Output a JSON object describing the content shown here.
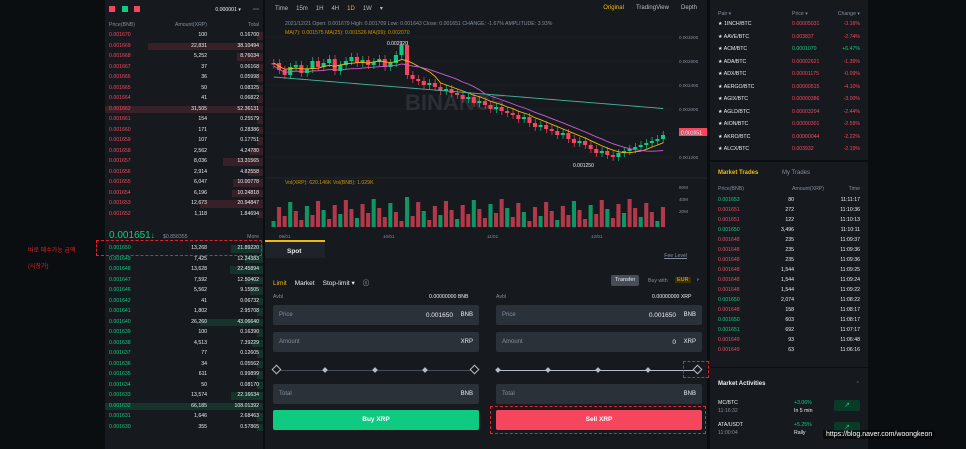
{
  "annotation": {
    "line1": "바로 매수가능 금액",
    "line2": "(시장가)"
  },
  "watermark": "https://blog.naver.com/woongkeon",
  "orderbook": {
    "precision": "0.000001 ▾",
    "headers": [
      "Price(BNB)",
      "Amount(XRP)",
      "Total"
    ],
    "asks": [
      [
        "0.001670",
        "100",
        "0.16700"
      ],
      [
        "0.001669",
        "22,831",
        "38.10494"
      ],
      [
        "0.001668",
        "5,252",
        "8.76034"
      ],
      [
        "0.001667",
        "37",
        "0.06168"
      ],
      [
        "0.001666",
        "36",
        "0.05998"
      ],
      [
        "0.001665",
        "50",
        "0.08325"
      ],
      [
        "0.001664",
        "41",
        "0.06822"
      ],
      [
        "0.001662",
        "31,505",
        "52.36131"
      ],
      [
        "0.001661",
        "154",
        "0.25579"
      ],
      [
        "0.001660",
        "171",
        "0.28386"
      ],
      [
        "0.001659",
        "107",
        "0.17751"
      ],
      [
        "0.001658",
        "2,562",
        "4.24780"
      ],
      [
        "0.001657",
        "8,036",
        "13.31565"
      ],
      [
        "0.001656",
        "2,914",
        "4.82558"
      ],
      [
        "0.001655",
        "6,047",
        "10.00778"
      ],
      [
        "0.001654",
        "6,196",
        "10.24818"
      ],
      [
        "0.001653",
        "12,673",
        "20.94847"
      ],
      [
        "0.001652",
        "1,118",
        "1.84694"
      ]
    ],
    "last_price": "0.001651",
    "last_arrow": "↓",
    "last_usd": "$0.858355",
    "more": "More",
    "bids": [
      [
        "0.001650",
        "13,268",
        "21.89220"
      ],
      [
        "0.001649",
        "7,425",
        "12.24383"
      ],
      [
        "0.001648",
        "13,628",
        "22.45894"
      ],
      [
        "0.001647",
        "7,592",
        "12.50402"
      ],
      [
        "0.001646",
        "5,562",
        "9.15505"
      ],
      [
        "0.001642",
        "41",
        "0.06732"
      ],
      [
        "0.001641",
        "1,802",
        "2.95708"
      ],
      [
        "0.001640",
        "26,260",
        "43.06640"
      ],
      [
        "0.001639",
        "100",
        "0.16390"
      ],
      [
        "0.001638",
        "4,513",
        "7.39229"
      ],
      [
        "0.001637",
        "77",
        "0.12605"
      ],
      [
        "0.001636",
        "34",
        "0.05562"
      ],
      [
        "0.001635",
        "611",
        "0.99899"
      ],
      [
        "0.001634",
        "50",
        "0.08170"
      ],
      [
        "0.001633",
        "13,574",
        "22.16634"
      ],
      [
        "0.001632",
        "66,185",
        "108.01392"
      ],
      [
        "0.001631",
        "1,646",
        "2.68463"
      ],
      [
        "0.001630",
        "355",
        "0.57865"
      ]
    ]
  },
  "chart": {
    "intervals": [
      "Time",
      "15m",
      "1H",
      "4H",
      "1D",
      "1W",
      "▾"
    ],
    "active_interval": "1D",
    "views": [
      "Original",
      "TradingView",
      "Depth"
    ],
    "ohlc": "2021/12/21  Open: 0.001679  High: 0.001709  Low: 0.001643  Close: 0.001651  CHANGE: -1.67%  AMPLITUDE: 3.93%",
    "ma": "MA(7): 0.001575  MA(25): 0.001526  MA(99): 0.002070",
    "vol": "Vol(XRP): 620.146K  Vol(BNB): 1.029K",
    "high_label": "0.002920",
    "low_label": "0.001250",
    "price_tag": "0.001651",
    "y_ticks": [
      "0.003200",
      "0.002800",
      "0.002400",
      "0.002000",
      "0.001600",
      "0.001200"
    ],
    "vol_ticks": [
      "60M",
      "40M",
      "20M"
    ],
    "x_ticks": [
      "09/01",
      "10/01",
      "11/01",
      "12/01"
    ],
    "watermark": "BINANCE"
  },
  "trade": {
    "tab": "Spot",
    "fee": "Fee Level",
    "order_types": [
      "Limit",
      "Market",
      "Stop-limit ▾",
      "ⓘ"
    ],
    "transfer": "Transfer",
    "buy_with": "Buy with",
    "eur": "EUR",
    "buy": {
      "avbl_label": "Avbl",
      "avbl_value": "0.00000000 BNB",
      "price_label": "Price",
      "price_value": "0.001650",
      "price_unit": "BNB",
      "amount_label": "Amount",
      "amount_value": "",
      "amount_unit": "XRP",
      "total_label": "Total",
      "total_unit": "BNB",
      "button": "Buy XRP"
    },
    "sell": {
      "avbl_label": "Avbl",
      "avbl_value": "0.00000000 XRP",
      "price_label": "Price",
      "price_value": "0.001650",
      "price_unit": "BNB",
      "amount_label": "Amount",
      "amount_value": "0",
      "amount_unit": "XRP",
      "total_label": "Total",
      "total_unit": "BNB",
      "button": "Sell XRP"
    }
  },
  "pairs": {
    "headers": [
      "Pair ▾",
      "Price ▾",
      "Change ▾"
    ],
    "rows": [
      [
        "1INCH/BTC",
        "0.00005031",
        "-3.16%",
        "red"
      ],
      [
        "AAVE/BTC",
        "0.003837",
        "-2.74%",
        "red"
      ],
      [
        "ACM/BTC",
        "0.0001070",
        "+6.47%",
        "green"
      ],
      [
        "ADA/BTC",
        "0.00002621",
        "-1.39%",
        "red"
      ],
      [
        "ADX/BTC",
        "0.00001175",
        "-0.09%",
        "red"
      ],
      [
        "AERGO/BTC",
        "0.00000515",
        "-4.10%",
        "red"
      ],
      [
        "AGIX/BTC",
        "0.00000386",
        "-3.00%",
        "red"
      ],
      [
        "AGLD/BTC",
        "0.00003204",
        "-2.44%",
        "red"
      ],
      [
        "AION/BTC",
        "0.00000301",
        "-2.59%",
        "red"
      ],
      [
        "AKRO/BTC",
        "0.00000044",
        "-2.22%",
        "red"
      ],
      [
        "ALCX/BTC",
        "0.003932",
        "-2.19%",
        "red"
      ]
    ]
  },
  "market_trades": {
    "tabs": [
      "Market Trades",
      "My Trades"
    ],
    "headers": [
      "Price(BNB)",
      "Amount(XRP)",
      "Time"
    ],
    "rows": [
      [
        "0.001653",
        "80",
        "11:11:17",
        "green"
      ],
      [
        "0.001651",
        "272",
        "11:10:36",
        "red"
      ],
      [
        "0.001651",
        "122",
        "11:10:13",
        "red"
      ],
      [
        "0.001650",
        "3,496",
        "11:10:11",
        "green"
      ],
      [
        "0.001648",
        "235",
        "11:09:37",
        "red"
      ],
      [
        "0.001648",
        "235",
        "11:09:36",
        "red"
      ],
      [
        "0.001648",
        "235",
        "11:09:36",
        "red"
      ],
      [
        "0.001648",
        "1,544",
        "11:09:25",
        "red"
      ],
      [
        "0.001648",
        "1,544",
        "11:09:24",
        "red"
      ],
      [
        "0.001648",
        "1,544",
        "11:09:22",
        "red"
      ],
      [
        "0.001650",
        "2,074",
        "11:08:22",
        "green"
      ],
      [
        "0.001648",
        "158",
        "11:08:17",
        "red"
      ],
      [
        "0.001650",
        "603",
        "11:08:17",
        "green"
      ],
      [
        "0.001651",
        "692",
        "11:07:17",
        "green"
      ],
      [
        "0.001649",
        "93",
        "11:06:48",
        "red"
      ],
      [
        "0.001649",
        "63",
        "11:06:16",
        "red"
      ]
    ]
  },
  "market_activities": {
    "title": "Market Activities",
    "rows": [
      {
        "pair": "MC/BTC",
        "time": "11:16:32",
        "change": "+3.06%",
        "desc": "In 5 min"
      },
      {
        "pair": "ATA/USDT",
        "time": "11:00:04",
        "change": "+5.25%",
        "desc": "Rally"
      }
    ]
  },
  "colors": {
    "red": "#f6465d",
    "green": "#0ecb81",
    "accent": "#f0b90b",
    "bg": "#161a1e"
  }
}
